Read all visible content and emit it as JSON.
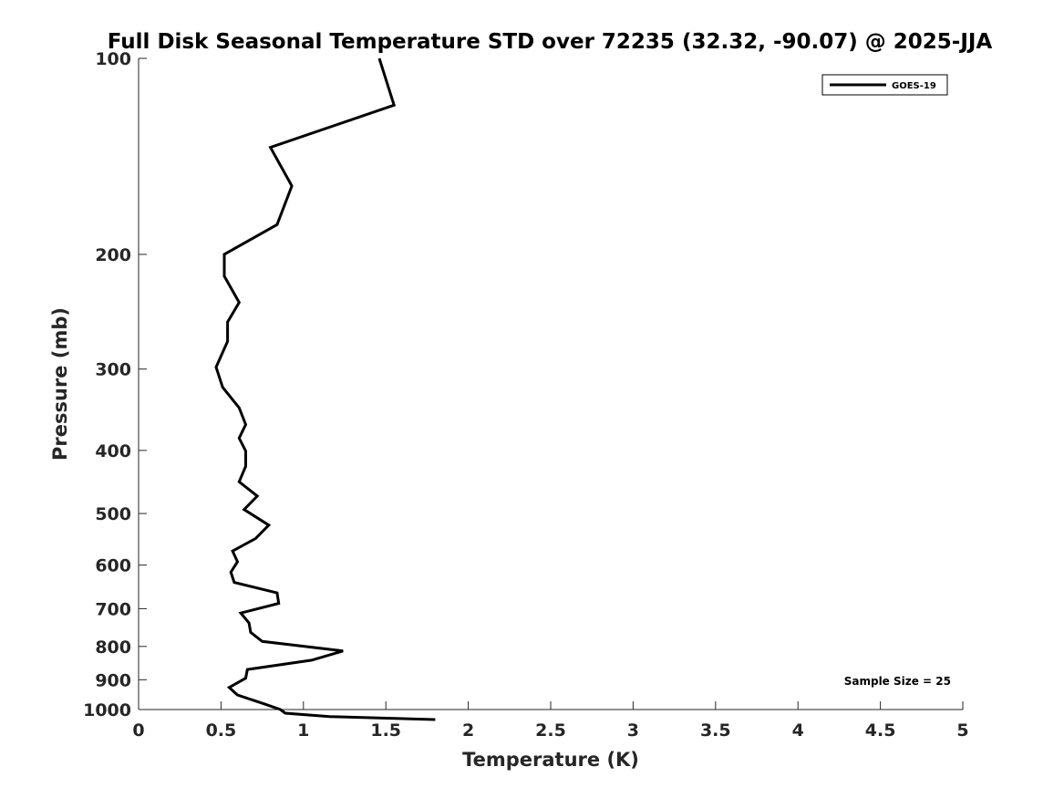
{
  "chart_data": {
    "type": "line",
    "title": "Full Disk Seasonal Temperature STD over 72235 (32.32, -90.07) @ 2025-JJA",
    "xlabel": "Temperature (K)",
    "ylabel": "Pressure (mb)",
    "xlim": [
      0,
      5
    ],
    "ylim": [
      100,
      1000
    ],
    "yscale": "log",
    "y_reversed": true,
    "xticks": [
      0,
      0.5,
      1,
      1.5,
      2,
      2.5,
      3,
      3.5,
      4,
      4.5,
      5
    ],
    "xtick_labels": [
      "0",
      "0.5",
      "1",
      "1.5",
      "2",
      "2.5",
      "3",
      "3.5",
      "4",
      "4.5",
      "5"
    ],
    "yticks": [
      100,
      200,
      300,
      400,
      500,
      600,
      700,
      800,
      900,
      1000
    ],
    "ytick_labels": [
      "100",
      "200",
      "300",
      "400",
      "500",
      "600",
      "700",
      "800",
      "900",
      "1000"
    ],
    "grid": false,
    "legend_position": "top-right",
    "series": [
      {
        "name": "GOES-19",
        "color": "#000000",
        "x": [
          1.46,
          1.55,
          0.8,
          0.93,
          0.84,
          0.52,
          0.52,
          0.61,
          0.54,
          0.54,
          0.47,
          0.51,
          0.61,
          0.65,
          0.61,
          0.65,
          0.65,
          0.61,
          0.72,
          0.64,
          0.79,
          0.71,
          0.57,
          0.6,
          0.56,
          0.58,
          0.84,
          0.85,
          0.62,
          0.67,
          0.68,
          0.75,
          1.24,
          1.05,
          0.66,
          0.65,
          0.55,
          0.6,
          0.76,
          0.86,
          0.89,
          1.16,
          1.8
        ],
        "y": [
          100,
          118,
          137,
          157,
          180,
          200,
          216,
          237,
          254,
          272,
          298,
          320,
          344,
          365,
          383,
          401,
          423,
          447,
          470,
          493,
          521,
          546,
          571,
          593,
          615,
          638,
          662,
          687,
          711,
          736,
          761,
          786,
          813,
          840,
          868,
          895,
          925,
          950,
          980,
          1000,
          1013,
          1025,
          1036
        ]
      }
    ],
    "annotation": "Sample Size = 25"
  }
}
